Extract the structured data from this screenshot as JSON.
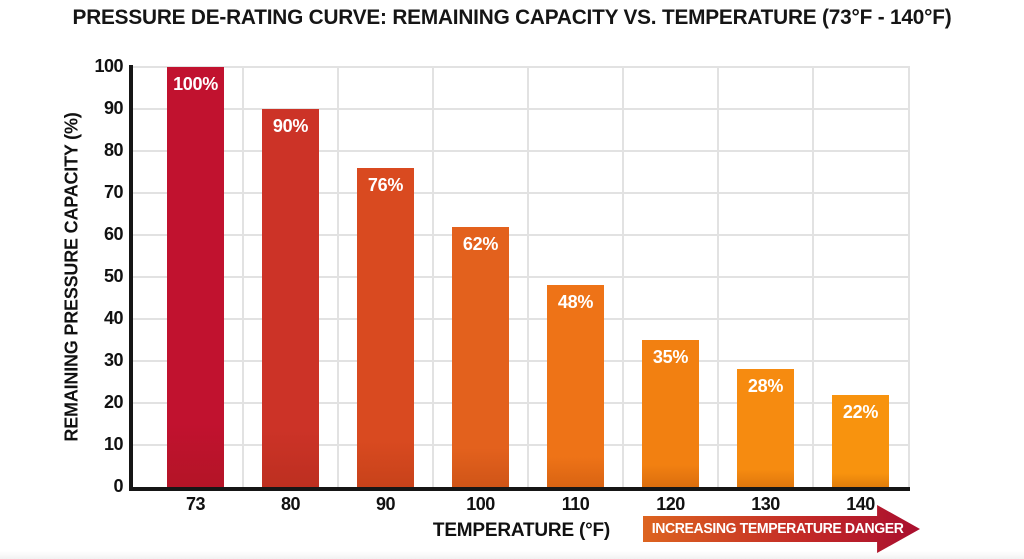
{
  "title": "PRESSURE DE-RATING CURVE: REMAINING CAPACITY VS. TEMPERATURE (73°F - 140°F)",
  "chart_data": {
    "type": "bar",
    "title": "PRESSURE DE-RATING CURVE: REMAINING CAPACITY VS. TEMPERATURE (73°F - 140°F)",
    "categories": [
      "73",
      "80",
      "90",
      "100",
      "110",
      "120",
      "130",
      "140"
    ],
    "values": [
      100,
      90,
      76,
      62,
      48,
      35,
      28,
      22
    ],
    "bar_labels": [
      "100%",
      "90%",
      "76%",
      "62%",
      "48%",
      "35%",
      "28%",
      "22%"
    ],
    "bar_colors": [
      "#c1122f",
      "#cc3327",
      "#d94a20",
      "#e3611d",
      "#ee7317",
      "#f28011",
      "#f68b10",
      "#f8930e"
    ],
    "xlabel": "TEMPERATURE (°F)",
    "ylabel": "REMAINING PRESSURE CAPACITY (%)",
    "ylim": [
      0,
      100
    ],
    "yticks": [
      0,
      10,
      20,
      30,
      40,
      50,
      60,
      70,
      80,
      90,
      100
    ],
    "grid": true,
    "legend": null,
    "annotation": {
      "label": "INCREASING TEMPERATURE DANGER",
      "gradient_start": "#dd6420",
      "gradient_mid": "#c22827",
      "gradient_end": "#a90f2f"
    }
  }
}
